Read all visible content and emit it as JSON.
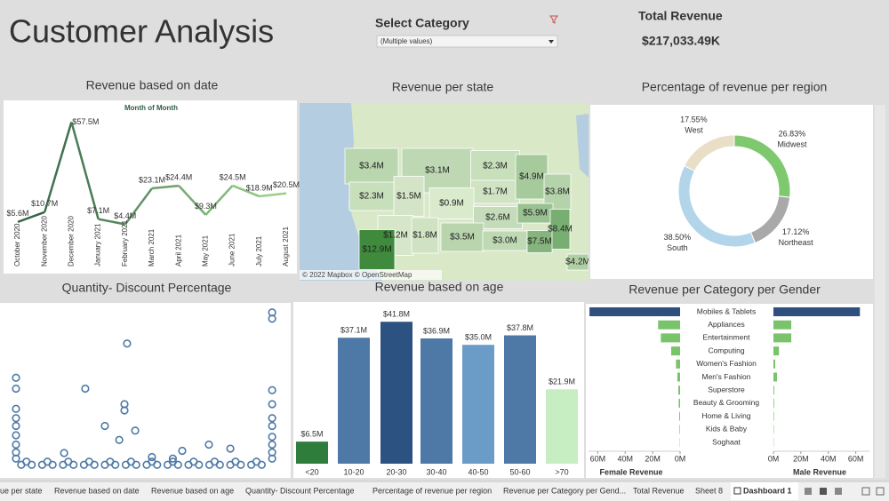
{
  "header": {
    "title": "Customer Analysis"
  },
  "filter": {
    "label": "Select Category",
    "value": "(Multiple values)"
  },
  "kpi": {
    "label": "Total Revenue",
    "value": "$217,033.49K"
  },
  "chart_data": [
    {
      "type": "line",
      "title": "Revenue based on date",
      "subtitle": "Month of Month",
      "categories": [
        "October 2020",
        "November 2020",
        "December 2020",
        "January 2021",
        "February 2021",
        "March 2021",
        "April 2021",
        "May 2021",
        "June 2021",
        "July 2021",
        "August 2021"
      ],
      "values": [
        5.6,
        10.7,
        57.5,
        7.1,
        4.4,
        23.1,
        24.4,
        9.3,
        24.5,
        18.9,
        20.5
      ],
      "value_labels": [
        "$5.6M",
        "$10.7M",
        "$57.5M",
        "$7.1M",
        "$4.4M",
        "$23.1M",
        "$24.4M",
        "$9.3M",
        "$24.5M",
        "$18.9M",
        "$20.5M"
      ],
      "ylim": [
        0,
        60
      ],
      "color": "#2f5d45",
      "color_end": "#9ed68c"
    },
    {
      "type": "map",
      "title": "Revenue per state",
      "values": [
        3.4,
        3.1,
        2.3,
        2.3,
        1.5,
        1.7,
        0.9,
        4.9,
        3.8,
        2.6,
        5.9,
        1.2,
        1.8,
        3.5,
        3.0,
        8.4,
        7.5,
        12.9,
        4.2
      ],
      "value_labels": [
        "$3.4M",
        "$3.1M",
        "$2.3M",
        "$2.3M",
        "$1.5M",
        "$1.7M",
        "$0.9M",
        "$4.9M",
        "$3.8M",
        "$2.6M",
        "$5.9M",
        "$1.2M",
        "$1.8M",
        "$3.5M",
        "$3.0M",
        "$8.4M",
        "$7.5M",
        "$12.9M",
        "$4.2M"
      ],
      "color": "#e6f1d8",
      "color_end": "#3f8a3c",
      "attribution": "© 2022 Mapbox © OpenStreetMap"
    },
    {
      "type": "pie",
      "title": "Percentage of revenue per region",
      "categories": [
        "Midwest",
        "Northeast",
        "South",
        "West"
      ],
      "values": [
        26.83,
        17.12,
        38.5,
        17.55
      ],
      "value_labels": [
        "26.83%",
        "17.12%",
        "38.50%",
        "17.55%"
      ],
      "colors": [
        "#7ec96e",
        "#a9a9a9",
        "#b2d5ea",
        "#e9dec6"
      ]
    },
    {
      "type": "scatter",
      "title": "Quantity- Discount  Percentage",
      "x": [
        0,
        0,
        0,
        0,
        0,
        0,
        0,
        0,
        0,
        98,
        98,
        98,
        98,
        98,
        98,
        98,
        98,
        98,
        98,
        26.5,
        42.5,
        41.5,
        41.5,
        34,
        45.6,
        39.5,
        63.6,
        73.8,
        82,
        18.4,
        52,
        60,
        2,
        6,
        10,
        14,
        18,
        22,
        26,
        30,
        34,
        38,
        42,
        46,
        50,
        54,
        58,
        62,
        66,
        70,
        74,
        78,
        82,
        86,
        90,
        94,
        4,
        12,
        20,
        28,
        36,
        44,
        52,
        60,
        68,
        76,
        84,
        92
      ],
      "y": [
        57,
        50,
        37,
        31,
        26,
        20,
        14,
        9,
        5,
        99,
        95,
        49,
        40,
        31,
        26,
        19,
        14,
        9,
        5,
        50,
        79,
        40,
        36,
        26,
        23,
        17,
        10,
        14,
        11.4,
        8.6,
        6,
        5,
        1,
        1,
        1,
        1,
        1,
        1,
        1,
        1,
        1,
        1,
        1,
        1,
        1,
        1,
        1,
        1,
        1,
        1,
        1,
        1,
        1,
        1,
        1,
        1,
        3,
        3,
        3,
        3,
        3,
        3,
        3,
        3,
        3,
        3,
        3,
        3
      ],
      "xlim": [
        0,
        100
      ],
      "ylim": [
        0,
        100
      ],
      "color": "#4e79a7"
    },
    {
      "type": "bar",
      "title": "Revenue based on age",
      "categories": [
        "<20",
        "10-20",
        "20-30",
        "30-40",
        "40-50",
        "50-60",
        ">70"
      ],
      "values": [
        6.5,
        37.1,
        41.8,
        36.9,
        35.0,
        37.8,
        21.9
      ],
      "value_labels": [
        "$6.5M",
        "$37.1M",
        "$41.8M",
        "$36.9M",
        "$35.0M",
        "$37.8M",
        "$21.9M"
      ],
      "ylim": [
        0,
        45
      ],
      "colors": [
        "#2e7d3b",
        "#4e79a7",
        "#2c5282",
        "#4e79a7",
        "#6b9bc7",
        "#4e79a7",
        "#c7edc2"
      ]
    },
    {
      "type": "butterfly",
      "title": "Revenue per Category per Gender",
      "categories": [
        "Mobiles & Tablets",
        "Appliances",
        "Entertainment",
        "Computing",
        "Women's Fashion",
        "Men's Fashion",
        "Superstore",
        "Beauty & Grooming",
        "Home & Living",
        "Kids & Baby",
        "Soghaat"
      ],
      "series": [
        {
          "name": "Female Revenue",
          "values": [
            66,
            16,
            14,
            6.5,
            3,
            2,
            1.3,
            1,
            0.6,
            0.4,
            0.2
          ],
          "xticks": [
            {
              "value": 60,
              "label": "60M"
            },
            {
              "value": 40,
              "label": "40M"
            },
            {
              "value": 20,
              "label": "20M"
            },
            {
              "value": 0,
              "label": "0M"
            }
          ]
        },
        {
          "name": "Male Revenue",
          "values": [
            63,
            13,
            13,
            4,
            1.3,
            2.6,
            0.6,
            0.5,
            0.4,
            0.3,
            0.2
          ],
          "xticks": [
            {
              "value": 0,
              "label": "0M"
            },
            {
              "value": 20,
              "label": "20M"
            },
            {
              "value": 40,
              "label": "40M"
            },
            {
              "value": 60,
              "label": "60M"
            }
          ]
        }
      ],
      "xlim": [
        0,
        68
      ],
      "colors": [
        "#2f4f7f",
        "#79c36a",
        "#79c36a",
        "#79c36a",
        "#79c36a",
        "#79c36a",
        "#79c36a",
        "#79c36a",
        "#79c36a",
        "#79c36a",
        "#79c36a"
      ]
    }
  ],
  "tabs": [
    "ue per state",
    "Revenue based on date",
    "Revenue based on age",
    "Quantity- Discount  Percentage",
    "Percentage of revenue per region",
    "Revenue per Category per Gend...",
    "Total Revenue",
    "Sheet 8",
    "Dashboard 1"
  ]
}
